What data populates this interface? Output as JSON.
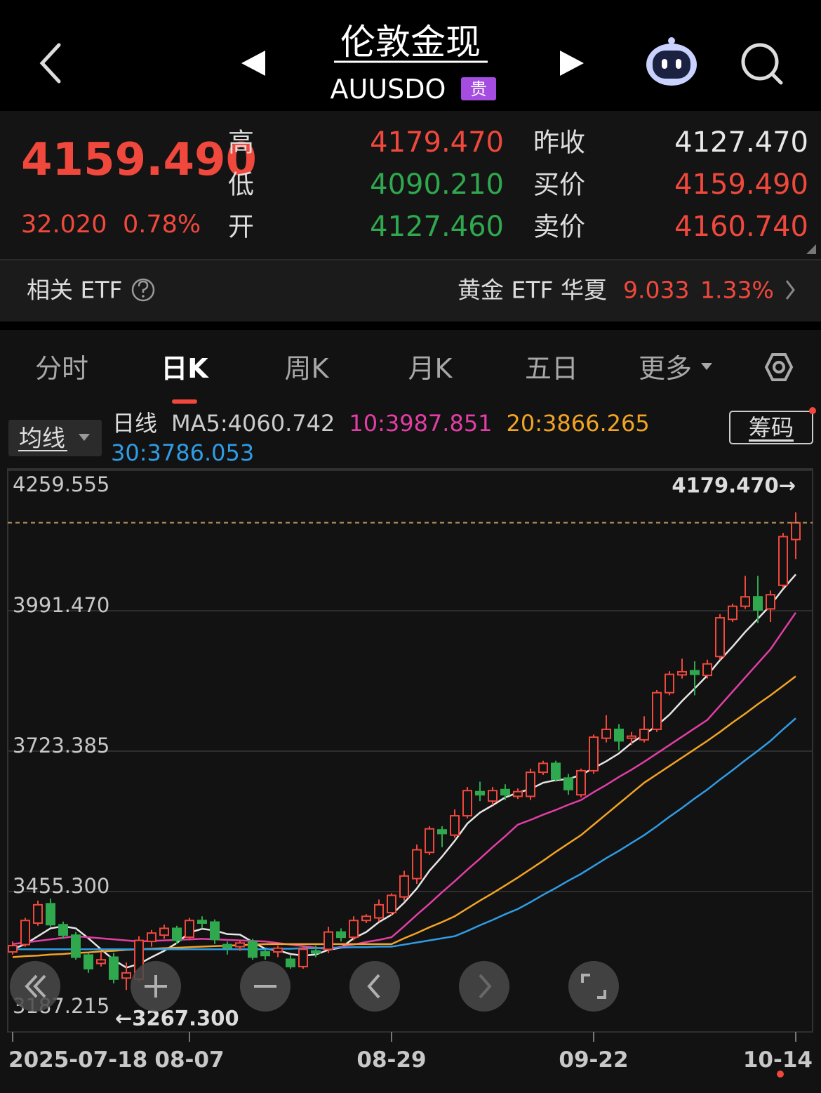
{
  "header": {
    "title": "伦敦金现",
    "code": "AUUSDO",
    "badge": "贵"
  },
  "quote": {
    "price": "4159.490",
    "change": "32.020",
    "change_pct": "0.78%",
    "stats": [
      {
        "label": "高",
        "value": "4179.470"
      },
      {
        "label": "低",
        "value": "4090.210"
      },
      {
        "label": "开",
        "value": "4127.460"
      },
      {
        "label": "昨收",
        "value": "4127.470"
      },
      {
        "label": "买价",
        "value": "4159.490"
      },
      {
        "label": "卖价",
        "value": "4160.740"
      }
    ]
  },
  "etf": {
    "label": "相关 ETF",
    "name": "黄金 ETF 华夏",
    "price": "9.033",
    "change_pct": "1.33%"
  },
  "tabs": [
    "分时",
    "日K",
    "周K",
    "月K",
    "五日",
    "更多"
  ],
  "indicator": {
    "selector": "均线",
    "period": "日线",
    "chips": "筹码"
  },
  "chart_data": {
    "type": "candlestick",
    "categories": [
      "2025-07-18",
      null,
      null,
      null,
      null,
      null,
      null,
      null,
      null,
      null,
      null,
      null,
      null,
      null,
      "08-07",
      null,
      null,
      null,
      null,
      null,
      null,
      null,
      null,
      null,
      null,
      null,
      null,
      null,
      null,
      null,
      "08-29",
      null,
      null,
      null,
      null,
      null,
      null,
      null,
      null,
      null,
      null,
      null,
      null,
      null,
      null,
      null,
      "09-22",
      null,
      null,
      null,
      null,
      null,
      null,
      null,
      null,
      null,
      null,
      null,
      null,
      null,
      null,
      null,
      "10-14"
    ],
    "open": [
      3340,
      3354,
      3395,
      3432,
      3392,
      3372,
      3334,
      3318,
      3330,
      3290,
      3288,
      3360,
      3372,
      3385,
      3368,
      3400,
      3397,
      3354,
      3350,
      3360,
      3340,
      3340,
      3326,
      3312,
      3342,
      3345,
      3378,
      3368,
      3400,
      3405,
      3415,
      3445,
      3480,
      3530,
      3573,
      3563,
      3600,
      3646,
      3628,
      3650,
      3637,
      3637,
      3683,
      3700,
      3672,
      3640,
      3686,
      3748,
      3765,
      3748,
      3745,
      3765,
      3835,
      3869,
      3877,
      3868,
      3904,
      3975,
      4000,
      4018,
      3995,
      4040,
      4127.46
    ],
    "high": [
      3360,
      3405,
      3438,
      3442,
      3398,
      3378,
      3338,
      3340,
      3338,
      3320,
      3370,
      3382,
      3392,
      3390,
      3405,
      3408,
      3402,
      3360,
      3362,
      3365,
      3345,
      3352,
      3335,
      3350,
      3352,
      3388,
      3385,
      3408,
      3412,
      3440,
      3452,
      3495,
      3545,
      3580,
      3580,
      3612,
      3655,
      3665,
      3655,
      3660,
      3652,
      3690,
      3705,
      3705,
      3680,
      3690,
      3755,
      3792,
      3775,
      3760,
      3790,
      3840,
      3876,
      3900,
      3895,
      3898,
      3985,
      4005,
      4058,
      4058,
      4030,
      4140,
      4179.47
    ],
    "low": [
      3335,
      3350,
      3390,
      3388,
      3365,
      3325,
      3300,
      3312,
      3280,
      3267.3,
      3283,
      3350,
      3365,
      3355,
      3362,
      3385,
      3355,
      3335,
      3342,
      3325,
      3325,
      3330,
      3308,
      3308,
      3330,
      3338,
      3360,
      3362,
      3395,
      3398,
      3410,
      3438,
      3470,
      3525,
      3540,
      3558,
      3595,
      3628,
      3620,
      3630,
      3632,
      3630,
      3678,
      3665,
      3640,
      3635,
      3680,
      3740,
      3725,
      3735,
      3740,
      3760,
      3830,
      3862,
      3830,
      3862,
      3898,
      3970,
      3995,
      3968,
      3970,
      4035,
      4090.21
    ],
    "close": [
      3352,
      3400,
      3430,
      3392,
      3372,
      3330,
      3308,
      3325,
      3288,
      3300,
      3362,
      3376,
      3385,
      3362,
      3400,
      3395,
      3364,
      3348,
      3357,
      3330,
      3333,
      3347,
      3312,
      3345,
      3338,
      3378,
      3368,
      3400,
      3408,
      3430,
      3448,
      3485,
      3535,
      3575,
      3566,
      3600,
      3648,
      3640,
      3648,
      3640,
      3646,
      3683,
      3700,
      3670,
      3650,
      3686,
      3750,
      3765,
      3743,
      3752,
      3765,
      3835,
      3870,
      3875,
      3870,
      3890,
      3978,
      4000,
      4018,
      3993,
      4022,
      4133,
      4159.49
    ],
    "up_color": "#f0483c",
    "down_color": "#2fa84e",
    "series": [
      {
        "name": "MA5:",
        "color": "#e6e6e6",
        "values": [
          3345,
          3355,
          3370,
          3385,
          3389,
          3385,
          3366,
          3345,
          3325,
          3310,
          3317,
          3330,
          3342,
          3357,
          3377,
          3384,
          3381,
          3374,
          3373,
          3359,
          3346,
          3343,
          3336,
          3333,
          3335,
          3344,
          3348,
          3366,
          3378,
          3397,
          3411,
          3434,
          3461,
          3495,
          3522,
          3552,
          3585,
          3606,
          3620,
          3635,
          3644,
          3651,
          3663,
          3668,
          3670,
          3678,
          3691,
          3704,
          3719,
          3739,
          3755,
          3772,
          3793,
          3819,
          3843,
          3868,
          3897,
          3923,
          3951,
          3976,
          4002,
          4033,
          4060.742
        ]
      },
      {
        "name": "10:",
        "color": "#e23ea6",
        "values": [
          3355,
          3358,
          3361,
          3364,
          3367,
          3370,
          3368,
          3366,
          3364,
          3362,
          3360,
          3361,
          3362,
          3363,
          3364,
          3365,
          3364,
          3363,
          3362,
          3361,
          3360,
          3357,
          3354,
          3351,
          3348,
          3345,
          3350,
          3354,
          3359,
          3363,
          3368,
          3389,
          3411,
          3432,
          3454,
          3475,
          3497,
          3518,
          3540,
          3561,
          3583,
          3592,
          3602,
          3611,
          3621,
          3630,
          3645,
          3659,
          3674,
          3688,
          3703,
          3719,
          3735,
          3751,
          3767,
          3783,
          3810,
          3837,
          3864,
          3891,
          3918,
          3953,
          3987.851
        ]
      },
      {
        "name": "20:",
        "color": "#f2a425",
        "values": [
          3330,
          3332,
          3333,
          3335,
          3336,
          3338,
          3339,
          3341,
          3342,
          3344,
          3345,
          3346,
          3347,
          3348,
          3349,
          3350,
          3351,
          3352,
          3353,
          3354,
          3355,
          3355,
          3355,
          3355,
          3355,
          3355,
          3355,
          3355,
          3355,
          3355,
          3355,
          3366,
          3376,
          3387,
          3397,
          3408,
          3423,
          3438,
          3452,
          3467,
          3482,
          3498,
          3514,
          3531,
          3547,
          3563,
          3583,
          3603,
          3623,
          3643,
          3663,
          3679,
          3695,
          3711,
          3727,
          3743,
          3760,
          3778,
          3795,
          3813,
          3830,
          3848,
          3866.265
        ]
      },
      {
        "name": "30:",
        "color": "#2f9ce6",
        "values": [
          3345,
          3345,
          3345,
          3345,
          3345,
          3345,
          3345,
          3345,
          3345,
          3345,
          3345,
          3345,
          3345,
          3345,
          3345,
          3345,
          3345,
          3345,
          3345,
          3345,
          3345,
          3346,
          3346,
          3347,
          3347,
          3348,
          3348,
          3349,
          3349,
          3350,
          3350,
          3354,
          3358,
          3362,
          3366,
          3370,
          3380,
          3391,
          3401,
          3412,
          3422,
          3435,
          3449,
          3462,
          3476,
          3489,
          3504,
          3519,
          3533,
          3548,
          3563,
          3580,
          3598,
          3615,
          3633,
          3650,
          3669,
          3687,
          3706,
          3724,
          3743,
          3765,
          3786.053
        ]
      }
    ],
    "ylim": [
      3187.215,
      4259.555
    ],
    "yticks": [
      4259.555,
      {
        "value": 3991.47,
        "label": "3991.470"
      },
      3723.385,
      {
        "value": 3455.3,
        "label": "3455.300"
      },
      3187.215
    ],
    "grid": true,
    "price_line": true,
    "annotations": [
      {
        "value": 4179.47,
        "label": "4179.470→"
      },
      {
        "value": 3267.3,
        "label": "←3267.300"
      }
    ]
  }
}
